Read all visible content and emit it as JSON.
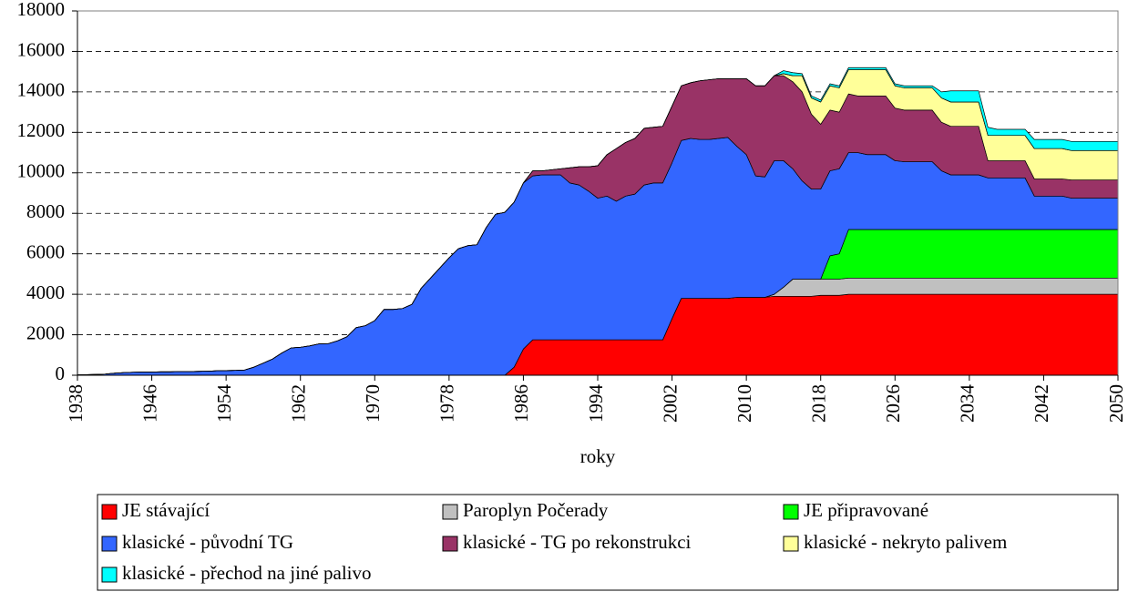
{
  "chart_data": {
    "type": "stacked-area",
    "x_label": "roky",
    "x": [
      1938,
      1939,
      1940,
      1941,
      1942,
      1943,
      1944,
      1945,
      1946,
      1947,
      1948,
      1949,
      1950,
      1951,
      1952,
      1953,
      1954,
      1955,
      1956,
      1957,
      1958,
      1959,
      1960,
      1961,
      1962,
      1963,
      1964,
      1965,
      1966,
      1967,
      1968,
      1969,
      1970,
      1971,
      1972,
      1973,
      1974,
      1975,
      1976,
      1977,
      1978,
      1979,
      1980,
      1981,
      1982,
      1983,
      1984,
      1985,
      1986,
      1987,
      1988,
      1989,
      1990,
      1991,
      1992,
      1993,
      1994,
      1995,
      1996,
      1997,
      1998,
      1999,
      2000,
      2001,
      2002,
      2003,
      2004,
      2005,
      2006,
      2007,
      2008,
      2009,
      2010,
      2011,
      2012,
      2013,
      2014,
      2015,
      2016,
      2017,
      2018,
      2019,
      2020,
      2021,
      2022,
      2023,
      2024,
      2025,
      2026,
      2027,
      2028,
      2029,
      2030,
      2031,
      2032,
      2033,
      2034,
      2035,
      2036,
      2037,
      2038,
      2039,
      2040,
      2041,
      2042,
      2043,
      2044,
      2045,
      2046,
      2047,
      2048,
      2049,
      2050
    ],
    "xlim": [
      1938,
      2050
    ],
    "xticks": [
      1938,
      1946,
      1954,
      1962,
      1970,
      1978,
      1986,
      1994,
      2002,
      2010,
      2018,
      2026,
      2034,
      2042,
      2050
    ],
    "ylim": [
      0,
      18000
    ],
    "yticks": [
      0,
      2000,
      4000,
      6000,
      8000,
      10000,
      12000,
      14000,
      16000,
      18000
    ],
    "grid": true,
    "series": [
      {
        "name": "JE stávající",
        "color": "#ff0000",
        "values": [
          0,
          0,
          0,
          0,
          0,
          0,
          0,
          0,
          0,
          0,
          0,
          0,
          0,
          0,
          0,
          0,
          0,
          0,
          0,
          0,
          0,
          0,
          0,
          0,
          0,
          0,
          0,
          0,
          0,
          0,
          0,
          0,
          0,
          0,
          0,
          0,
          0,
          0,
          0,
          0,
          0,
          0,
          0,
          0,
          0,
          0,
          0,
          400,
          1300,
          1750,
          1750,
          1750,
          1750,
          1750,
          1750,
          1750,
          1750,
          1750,
          1750,
          1750,
          1750,
          1750,
          1750,
          1750,
          2800,
          3800,
          3800,
          3800,
          3800,
          3800,
          3800,
          3850,
          3850,
          3850,
          3850,
          3900,
          3900,
          3900,
          3900,
          3900,
          3950,
          3950,
          3950,
          4000,
          4000,
          4000,
          4000,
          4000,
          4000,
          4000,
          4000,
          4000,
          4000,
          4000,
          4000,
          4000,
          4000,
          4000,
          4000,
          4000,
          4000,
          4000,
          4000,
          4000,
          4000,
          4000,
          4000,
          4000,
          4000,
          4000,
          4000,
          4000,
          4000
        ]
      },
      {
        "name": "Paroplyn Počerady",
        "color": "#c0c0c0",
        "values": [
          0,
          0,
          0,
          0,
          0,
          0,
          0,
          0,
          0,
          0,
          0,
          0,
          0,
          0,
          0,
          0,
          0,
          0,
          0,
          0,
          0,
          0,
          0,
          0,
          0,
          0,
          0,
          0,
          0,
          0,
          0,
          0,
          0,
          0,
          0,
          0,
          0,
          0,
          0,
          0,
          0,
          0,
          0,
          0,
          0,
          0,
          0,
          0,
          0,
          0,
          0,
          0,
          0,
          0,
          0,
          0,
          0,
          0,
          0,
          0,
          0,
          0,
          0,
          0,
          0,
          0,
          0,
          0,
          0,
          0,
          0,
          0,
          0,
          0,
          0,
          100,
          450,
          850,
          850,
          850,
          800,
          800,
          800,
          800,
          800,
          800,
          800,
          800,
          800,
          800,
          800,
          800,
          800,
          800,
          800,
          800,
          800,
          800,
          800,
          800,
          800,
          800,
          800,
          800,
          800,
          800,
          800,
          800,
          800,
          800,
          800,
          800,
          800
        ]
      },
      {
        "name": "JE připravované",
        "color": "#00ff00",
        "values": [
          0,
          0,
          0,
          0,
          0,
          0,
          0,
          0,
          0,
          0,
          0,
          0,
          0,
          0,
          0,
          0,
          0,
          0,
          0,
          0,
          0,
          0,
          0,
          0,
          0,
          0,
          0,
          0,
          0,
          0,
          0,
          0,
          0,
          0,
          0,
          0,
          0,
          0,
          0,
          0,
          0,
          0,
          0,
          0,
          0,
          0,
          0,
          0,
          0,
          0,
          0,
          0,
          0,
          0,
          0,
          0,
          0,
          0,
          0,
          0,
          0,
          0,
          0,
          0,
          0,
          0,
          0,
          0,
          0,
          0,
          0,
          0,
          0,
          0,
          0,
          0,
          0,
          0,
          0,
          0,
          0,
          1150,
          1250,
          2400,
          2400,
          2400,
          2400,
          2400,
          2400,
          2400,
          2400,
          2400,
          2400,
          2400,
          2400,
          2400,
          2400,
          2400,
          2400,
          2400,
          2400,
          2400,
          2400,
          2400,
          2400,
          2400,
          2400,
          2400,
          2400,
          2400,
          2400,
          2400,
          2400
        ]
      },
      {
        "name": "klasické - původní TG",
        "color": "#3366ff",
        "values": [
          20,
          30,
          40,
          60,
          100,
          130,
          150,
          160,
          160,
          170,
          170,
          180,
          180,
          190,
          200,
          220,
          230,
          240,
          260,
          400,
          600,
          800,
          1100,
          1350,
          1380,
          1450,
          1550,
          1560,
          1700,
          1900,
          2350,
          2450,
          2700,
          3250,
          3250,
          3300,
          3500,
          4300,
          4800,
          5300,
          5800,
          6250,
          6400,
          6450,
          7300,
          7950,
          8050,
          8150,
          8200,
          8100,
          8150,
          8150,
          8150,
          7750,
          7650,
          7350,
          7000,
          7100,
          6850,
          7100,
          7200,
          7650,
          7750,
          7750,
          7700,
          7800,
          7900,
          7850,
          7850,
          7900,
          7950,
          7450,
          7050,
          6000,
          5950,
          6600,
          6250,
          5450,
          4850,
          4450,
          4450,
          4200,
          4200,
          3800,
          3800,
          3700,
          3700,
          3700,
          3400,
          3350,
          3350,
          3350,
          3350,
          2900,
          2700,
          2700,
          2700,
          2700,
          2550,
          2550,
          2550,
          2550,
          2550,
          1650,
          1650,
          1650,
          1650,
          1550,
          1550,
          1550,
          1550,
          1550,
          1550
        ]
      },
      {
        "name": "klasické - TG po rekonstrukci",
        "color": "#993366",
        "values": [
          0,
          0,
          0,
          0,
          0,
          0,
          0,
          0,
          0,
          0,
          0,
          0,
          0,
          0,
          0,
          0,
          0,
          0,
          0,
          0,
          0,
          0,
          0,
          0,
          0,
          0,
          0,
          0,
          0,
          0,
          0,
          0,
          0,
          0,
          0,
          0,
          0,
          0,
          0,
          0,
          0,
          0,
          0,
          0,
          0,
          0,
          0,
          0,
          0,
          250,
          200,
          250,
          300,
          750,
          900,
          1200,
          1600,
          2050,
          2600,
          2650,
          2750,
          2800,
          2750,
          2800,
          2800,
          2700,
          2750,
          2900,
          2950,
          2950,
          2900,
          3350,
          3750,
          4450,
          4500,
          4200,
          4200,
          4300,
          4400,
          3700,
          3200,
          3000,
          2800,
          2900,
          2800,
          2900,
          2900,
          2900,
          2600,
          2550,
          2550,
          2550,
          2550,
          2400,
          2400,
          2400,
          2400,
          2400,
          850,
          850,
          850,
          850,
          850,
          850,
          850,
          850,
          850,
          900,
          900,
          900,
          900,
          900,
          900
        ]
      },
      {
        "name": "klasické - nekryto palivem",
        "color": "#ffff99",
        "values": [
          0,
          0,
          0,
          0,
          0,
          0,
          0,
          0,
          0,
          0,
          0,
          0,
          0,
          0,
          0,
          0,
          0,
          0,
          0,
          0,
          0,
          0,
          0,
          0,
          0,
          0,
          0,
          0,
          0,
          0,
          0,
          0,
          0,
          0,
          0,
          0,
          0,
          0,
          0,
          0,
          0,
          0,
          0,
          0,
          0,
          0,
          0,
          0,
          0,
          0,
          0,
          0,
          0,
          0,
          0,
          0,
          0,
          0,
          0,
          0,
          0,
          0,
          0,
          0,
          0,
          0,
          0,
          0,
          0,
          0,
          0,
          0,
          0,
          0,
          0,
          0,
          100,
          300,
          800,
          800,
          1100,
          1200,
          1200,
          1200,
          1300,
          1300,
          1300,
          1300,
          1100,
          1100,
          1100,
          1100,
          1100,
          1200,
          1200,
          1200,
          1200,
          1200,
          1250,
          1250,
          1250,
          1250,
          1250,
          1500,
          1500,
          1500,
          1500,
          1450,
          1450,
          1450,
          1450,
          1450,
          1450
        ]
      },
      {
        "name": "klasické - přechod na jiné palivo",
        "color": "#00ffff",
        "values": [
          0,
          0,
          0,
          0,
          0,
          0,
          0,
          0,
          0,
          0,
          0,
          0,
          0,
          0,
          0,
          0,
          0,
          0,
          0,
          0,
          0,
          0,
          0,
          0,
          0,
          0,
          0,
          0,
          0,
          0,
          0,
          0,
          0,
          0,
          0,
          0,
          0,
          0,
          0,
          0,
          0,
          0,
          0,
          0,
          0,
          0,
          0,
          0,
          0,
          0,
          0,
          0,
          0,
          0,
          0,
          0,
          0,
          0,
          0,
          0,
          0,
          0,
          0,
          0,
          0,
          0,
          0,
          0,
          0,
          0,
          0,
          0,
          0,
          0,
          0,
          0,
          150,
          150,
          100,
          100,
          100,
          100,
          100,
          100,
          100,
          100,
          100,
          100,
          100,
          100,
          100,
          100,
          100,
          300,
          550,
          550,
          550,
          550,
          400,
          300,
          300,
          300,
          300,
          450,
          450,
          450,
          450,
          450,
          450,
          450,
          450,
          450,
          450
        ]
      }
    ]
  }
}
